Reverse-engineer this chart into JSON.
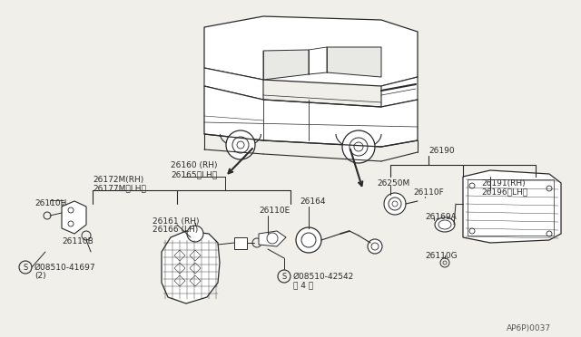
{
  "bg_color": "#f0efea",
  "line_color": "#2a2a2a",
  "text_color": "#2a2a2a",
  "diagram_ref": "AP6P)0037",
  "labels": {
    "26160_RH": "26160 (RH)",
    "26165_LH": "26165〈LH〉",
    "26172M_RH": "26172M(RH)",
    "26177M_LH": "26177M〈LH〉",
    "26110H": "26110H",
    "26110B": "26110B",
    "08510_41697": "Ø08510-41697",
    "08510_41697_qty": "(2)",
    "26110E": "26110E",
    "26161_RH": "26161 (RH)",
    "26166_LH": "26166 (LH)",
    "26164": "26164",
    "08510_42542": "Ø08510-42542",
    "08510_42542_qty": "〈 4 〉",
    "26190": "26190",
    "26250M": "26250M",
    "26110F": "26110F",
    "26191_RH": "26191(RH)",
    "26196_LH": "26196〈LH〉",
    "26169A": "26169A",
    "26110G": "26110G"
  }
}
